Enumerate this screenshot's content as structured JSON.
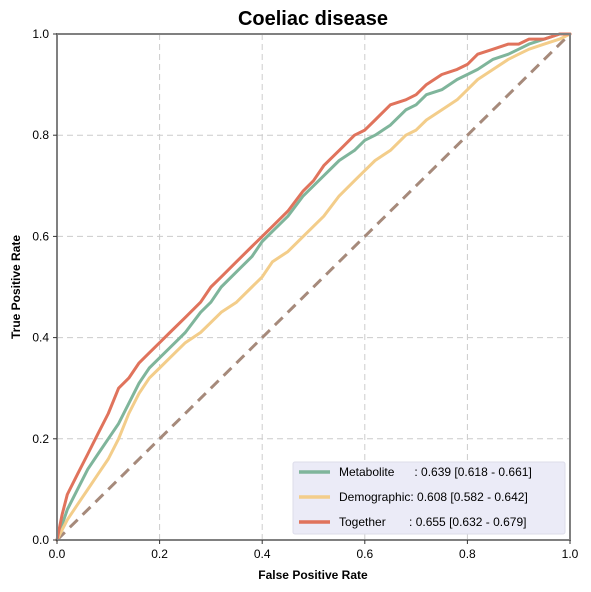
{
  "chart_data": {
    "type": "line",
    "title": "Coeliac disease",
    "xlabel": "False Positive Rate",
    "ylabel": "True Positive Rate",
    "xlim": [
      0,
      1
    ],
    "ylim": [
      0,
      1
    ],
    "xticks": [
      "0.0",
      "0.2",
      "0.4",
      "0.6",
      "0.8",
      "1.0"
    ],
    "yticks": [
      "0.0",
      "0.2",
      "0.4",
      "0.6",
      "0.8",
      "1.0"
    ],
    "grid": true,
    "legend_position": "bottom-right",
    "series": [
      {
        "name": "Metabolite",
        "legend_label": "Metabolite      : 0.639 [0.618 - 0.661]",
        "color": "#7fb59b",
        "x": [
          0,
          0.01,
          0.02,
          0.04,
          0.06,
          0.08,
          0.1,
          0.12,
          0.14,
          0.16,
          0.18,
          0.2,
          0.22,
          0.25,
          0.28,
          0.3,
          0.32,
          0.35,
          0.38,
          0.4,
          0.42,
          0.45,
          0.48,
          0.5,
          0.52,
          0.55,
          0.58,
          0.6,
          0.62,
          0.65,
          0.68,
          0.7,
          0.72,
          0.75,
          0.78,
          0.8,
          0.82,
          0.85,
          0.88,
          0.9,
          0.92,
          0.95,
          0.98,
          1.0
        ],
        "y": [
          0,
          0.03,
          0.06,
          0.1,
          0.14,
          0.17,
          0.2,
          0.23,
          0.27,
          0.31,
          0.34,
          0.36,
          0.38,
          0.41,
          0.45,
          0.47,
          0.5,
          0.53,
          0.56,
          0.59,
          0.61,
          0.64,
          0.68,
          0.7,
          0.72,
          0.75,
          0.77,
          0.79,
          0.8,
          0.82,
          0.85,
          0.86,
          0.88,
          0.89,
          0.91,
          0.92,
          0.93,
          0.95,
          0.96,
          0.97,
          0.98,
          0.99,
          1.0,
          1.0
        ]
      },
      {
        "name": "Demographic",
        "legend_label": "Demographic: 0.608 [0.582 - 0.642]",
        "color": "#f3cd8a",
        "x": [
          0,
          0.01,
          0.02,
          0.04,
          0.06,
          0.08,
          0.1,
          0.12,
          0.14,
          0.16,
          0.18,
          0.2,
          0.22,
          0.25,
          0.28,
          0.3,
          0.32,
          0.35,
          0.38,
          0.4,
          0.42,
          0.45,
          0.48,
          0.5,
          0.52,
          0.55,
          0.58,
          0.6,
          0.62,
          0.65,
          0.68,
          0.7,
          0.72,
          0.75,
          0.78,
          0.8,
          0.82,
          0.85,
          0.88,
          0.9,
          0.92,
          0.95,
          0.98,
          1.0
        ],
        "y": [
          0,
          0.02,
          0.04,
          0.07,
          0.1,
          0.13,
          0.16,
          0.2,
          0.25,
          0.29,
          0.32,
          0.34,
          0.36,
          0.39,
          0.41,
          0.43,
          0.45,
          0.47,
          0.5,
          0.52,
          0.55,
          0.57,
          0.6,
          0.62,
          0.64,
          0.68,
          0.71,
          0.73,
          0.75,
          0.77,
          0.8,
          0.81,
          0.83,
          0.85,
          0.87,
          0.89,
          0.91,
          0.93,
          0.95,
          0.96,
          0.97,
          0.98,
          0.99,
          1.0
        ]
      },
      {
        "name": "Together",
        "legend_label": "Together       : 0.655 [0.632 - 0.679]",
        "color": "#e0735c",
        "x": [
          0,
          0.01,
          0.02,
          0.04,
          0.06,
          0.08,
          0.1,
          0.12,
          0.14,
          0.16,
          0.18,
          0.2,
          0.22,
          0.25,
          0.28,
          0.3,
          0.32,
          0.35,
          0.38,
          0.4,
          0.42,
          0.45,
          0.48,
          0.5,
          0.52,
          0.55,
          0.58,
          0.6,
          0.62,
          0.65,
          0.68,
          0.7,
          0.72,
          0.75,
          0.78,
          0.8,
          0.82,
          0.85,
          0.88,
          0.9,
          0.92,
          0.95,
          0.98,
          1.0
        ],
        "y": [
          0,
          0.05,
          0.09,
          0.13,
          0.17,
          0.21,
          0.25,
          0.3,
          0.32,
          0.35,
          0.37,
          0.39,
          0.41,
          0.44,
          0.47,
          0.5,
          0.52,
          0.55,
          0.58,
          0.6,
          0.62,
          0.65,
          0.69,
          0.71,
          0.74,
          0.77,
          0.8,
          0.81,
          0.83,
          0.86,
          0.87,
          0.88,
          0.9,
          0.92,
          0.93,
          0.94,
          0.96,
          0.97,
          0.98,
          0.98,
          0.99,
          0.99,
          1.0,
          1.0
        ]
      }
    ],
    "reference_line": {
      "x": [
        0,
        1
      ],
      "y": [
        0,
        1
      ],
      "color": "#a68a7b",
      "style": "dashed"
    }
  }
}
